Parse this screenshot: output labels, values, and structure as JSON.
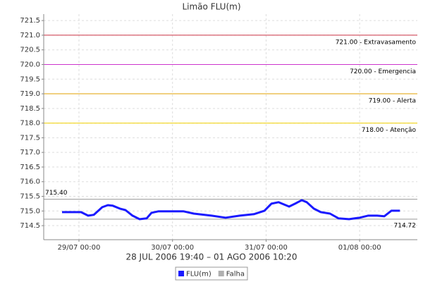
{
  "chart_data": {
    "type": "line",
    "title": "Limão FLU(m)",
    "subtitle": "28 JUL 2006 19:40 – 01 AGO 2006 10:20",
    "x": [
      -4.33,
      0.54,
      2.35,
      3.8,
      5.97,
      7.42,
      8.68,
      10.49,
      11.94,
      13.75,
      15.56,
      17.37,
      18.63,
      20.44,
      26.77,
      29.48,
      34.0,
      37.62,
      41.24,
      44.86,
      47.57,
      49.37,
      51.18,
      52.09,
      53.9,
      55.71,
      57.15,
      58.42,
      60.23,
      62.03,
      64.39,
      66.56,
      69.27,
      71.98,
      74.15,
      76.5,
      78.31,
      80.12,
      82.33
    ],
    "series": [
      {
        "name": "FLU(m)",
        "color": "#1a1aff",
        "values": [
          714.96,
          714.96,
          714.84,
          714.87,
          715.13,
          715.2,
          715.18,
          715.08,
          715.03,
          714.84,
          714.72,
          714.75,
          714.94,
          714.99,
          714.99,
          714.91,
          714.84,
          714.77,
          714.84,
          714.89,
          715.01,
          715.25,
          715.3,
          715.25,
          715.15,
          715.27,
          715.37,
          715.3,
          715.08,
          714.96,
          714.91,
          714.75,
          714.72,
          714.77,
          714.84,
          714.84,
          714.82,
          715.01,
          715.01
        ]
      },
      {
        "name": "Falha",
        "color": "#b0b0b0",
        "values": [
          null,
          null,
          null,
          null,
          null,
          null,
          null,
          null,
          null,
          null,
          null,
          null,
          null,
          null,
          null,
          null,
          null,
          null,
          null,
          null,
          null,
          null,
          null,
          null,
          null,
          null,
          null,
          null,
          null,
          null,
          null,
          null,
          null,
          null,
          null,
          null,
          null,
          null,
          null
        ]
      }
    ],
    "xlim": [
      -9.04,
      86.8
    ],
    "xticks": [
      {
        "value": 0,
        "label": "29/07 00:00"
      },
      {
        "value": 24,
        "label": "30/07 00:00"
      },
      {
        "value": 48,
        "label": "31/07 00:00"
      },
      {
        "value": 72,
        "label": "01/08 00:00"
      }
    ],
    "ylim": [
      714.02,
      721.72
    ],
    "yticks": [
      714.5,
      {
        "value": 715,
        "label": "715.0"
      },
      715.5,
      {
        "value": 716,
        "label": "716.0"
      },
      716.5,
      {
        "value": 717,
        "label": "717.0"
      },
      717.5,
      {
        "value": 718,
        "label": "718.0"
      },
      718.5,
      {
        "value": 719,
        "label": "719.0"
      },
      719.5,
      {
        "value": 720,
        "label": "720.0"
      },
      720.5,
      {
        "value": 721,
        "label": "721.0"
      },
      721.5
    ],
    "grid": true,
    "thresholds": [
      {
        "value": 721,
        "label": "721.00 - Extravasamento",
        "color": "#cc3344"
      },
      {
        "value": 720,
        "label": "720.00 - Emergencia",
        "color": "#cc33cc"
      },
      {
        "value": 719,
        "label": "719.00 - Alerta",
        "color": "#e0a000"
      },
      {
        "value": 718,
        "label": "718.00 - Atenção",
        "color": "#f0d000"
      }
    ],
    "reference_lines": [
      {
        "value": 715.4,
        "label": "715.40",
        "color": "#999999",
        "side": "left"
      },
      {
        "value": 714.72,
        "label": "714.72",
        "color": "#999999",
        "side": "right"
      }
    ],
    "legend": "bottom"
  }
}
